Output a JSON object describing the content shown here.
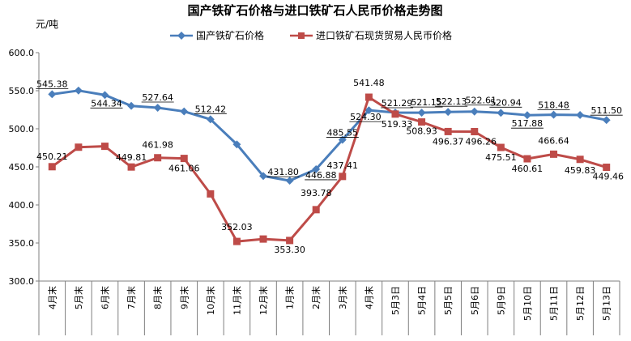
{
  "chart_data": {
    "type": "line",
    "title": "国产铁矿石价格与进口铁矿石人民币价格走势图",
    "ylabel": "元/吨",
    "ylim": [
      300,
      600
    ],
    "yticks": [
      "300.0",
      "350.0",
      "400.0",
      "450.0",
      "500.0",
      "550.0",
      "600.0"
    ],
    "grid": false,
    "legend_position": "top",
    "categories": [
      "4月末",
      "5月末",
      "6月末",
      "7月末",
      "8月末",
      "9月末",
      "10月末",
      "11月末",
      "12月末",
      "1月末",
      "2月末",
      "3月末",
      "4月末",
      "5月3日",
      "5月4日",
      "5月5日",
      "5月6日",
      "5月9日",
      "5月10日",
      "5月11日",
      "5月12日",
      "5月13日"
    ],
    "series": [
      {
        "name": "国产铁矿石价格",
        "color": "#4a7ebb",
        "marker": "diamond",
        "values": [
          545.38,
          550.2,
          544.34,
          530.1,
          527.64,
          522.8,
          512.42,
          479.5,
          438.0,
          431.8,
          446.88,
          485.55,
          524.3,
          521.29,
          521.15,
          522.13,
          522.61,
          520.94,
          517.88,
          518.48,
          518.1,
          511.5
        ],
        "labels": [
          "545.38",
          "",
          "544.34",
          "",
          "527.64",
          "",
          "512.42",
          "",
          "",
          "431.80",
          "446.88",
          "485.55",
          "524.30",
          "521.29",
          "521.15",
          "522.13",
          "522.61",
          "520.94",
          "517.88",
          "518.48",
          "",
          "511.50"
        ]
      },
      {
        "name": "进口铁矿石现货贸易人民币价格",
        "color": "#be4b48",
        "marker": "square",
        "values": [
          450.21,
          475.8,
          477.0,
          449.81,
          461.98,
          461.06,
          414.5,
          352.03,
          355.2,
          353.3,
          393.78,
          437.41,
          541.48,
          519.33,
          508.93,
          496.37,
          496.26,
          475.51,
          460.61,
          466.64,
          459.83,
          449.46
        ],
        "labels": [
          "450.21",
          "",
          "",
          "449.81",
          "461.98",
          "461.06",
          "",
          "352.03",
          "",
          "353.30",
          "393.78",
          "437.41",
          "541.48",
          "519.33",
          "508.93",
          "496.37",
          "496.26",
          "475.51",
          "460.61",
          "466.64",
          "459.83",
          "449.46"
        ]
      }
    ]
  }
}
